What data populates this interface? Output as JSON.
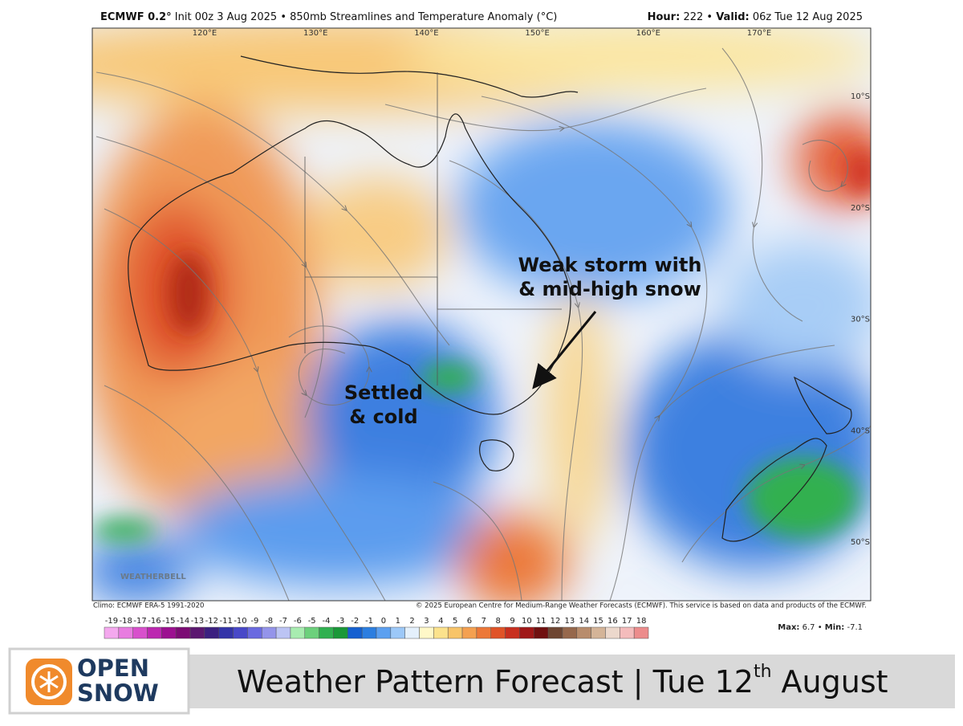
{
  "header": {
    "model": "ECMWF 0.2°",
    "description": "Init 00z 3 Aug 2025 • 850mb Streamlines and Temperature Anomaly (°C)",
    "hour_label": "Hour:",
    "hour": "222 •",
    "valid_label": "Valid:",
    "valid": "06z Tue 12 Aug 2025"
  },
  "map": {
    "lon_labels": [
      "120°E",
      "130°E",
      "140°E",
      "150°E",
      "160°E",
      "170°E"
    ],
    "lat_labels": [
      "10°S",
      "20°S",
      "30°S",
      "40°S",
      "50°S"
    ],
    "annotations": {
      "storm_line1": "Weak storm with",
      "storm_line2": "& mid-high snow",
      "settled_line1": "Settled",
      "settled_line2": "& cold"
    },
    "watermark": "WEATHERBELL"
  },
  "credits": {
    "climo": "Climo: ECMWF ERA-5 1991-2020",
    "copyright": "© 2025 European Centre for Medium-Range Weather Forecasts (ECMWF). This service is based on data and products of the ECMWF."
  },
  "legend": {
    "ticks": [
      -19,
      -18,
      -17,
      -16,
      -15,
      -14,
      -13,
      -12,
      -11,
      -10,
      -9,
      -8,
      -7,
      -6,
      -5,
      -4,
      -3,
      -2,
      -1,
      0,
      1,
      2,
      3,
      4,
      5,
      6,
      7,
      8,
      9,
      10,
      11,
      12,
      13,
      14,
      15,
      16,
      17,
      18
    ],
    "colors": [
      "#f4a8ee",
      "#e87ce0",
      "#d850cc",
      "#bc28b0",
      "#9c1090",
      "#7c0c74",
      "#5c1870",
      "#3c2080",
      "#3434a8",
      "#4848c8",
      "#6a6ae0",
      "#9494ea",
      "#bcc4f4",
      "#a8ecb0",
      "#6cd07c",
      "#30b050",
      "#1a9838",
      "#1460d0",
      "#2c7ee0",
      "#5ca0f0",
      "#9cc8f8",
      "#e4f0fc",
      "#fff8c8",
      "#fbe28c",
      "#f8c468",
      "#f4a050",
      "#ec7838",
      "#e05428",
      "#c83020",
      "#a01818",
      "#701010",
      "#6e4632",
      "#96684c",
      "#b88c6c",
      "#d4b498",
      "#ecd8cc",
      "#f4bcbc",
      "#ec8c8c"
    ],
    "max_label": "Max:",
    "max": "6.7 •",
    "min_label": "Min:",
    "min": "-7.1"
  },
  "footer": {
    "logo_line1": "OPEN",
    "logo_line2": "SNOW",
    "title": "Weather Pattern Forecast | Tue 12",
    "title_sup": "th",
    "title_tail": "August"
  }
}
